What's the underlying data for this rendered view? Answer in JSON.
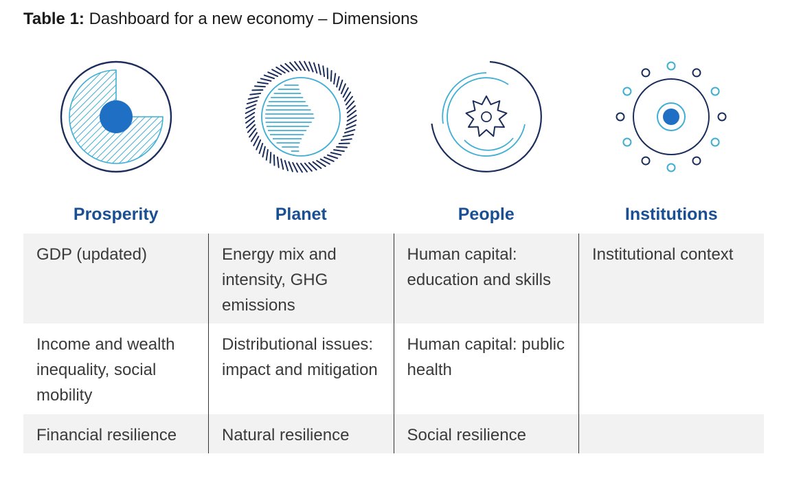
{
  "title": {
    "label": "Table 1:",
    "text": "Dashboard for a new economy – Dimensions"
  },
  "icons": [
    {
      "name": "prosperity-icon"
    },
    {
      "name": "planet-icon"
    },
    {
      "name": "people-icon"
    },
    {
      "name": "institutions-icon"
    }
  ],
  "colors": {
    "navy": "#1b2d5b",
    "blue": "#1f6fc4",
    "light_blue": "#3eaed4",
    "header_text": "#1a4f93",
    "band": "#f2f2f2"
  },
  "columns": [
    "Prosperity",
    "Planet",
    "People",
    "Institutions"
  ],
  "rows": [
    [
      "GDP (updated)",
      "Energy mix and intensity, GHG emissions",
      "Human capital: education and skills",
      "Institutional context"
    ],
    [
      "Income and wealth inequality, social mobility",
      "Distributional issues: impact and mitigation",
      "Human capital: public health",
      ""
    ],
    [
      "Financial resilience",
      "Natural resilience",
      "Social resilience",
      ""
    ]
  ]
}
